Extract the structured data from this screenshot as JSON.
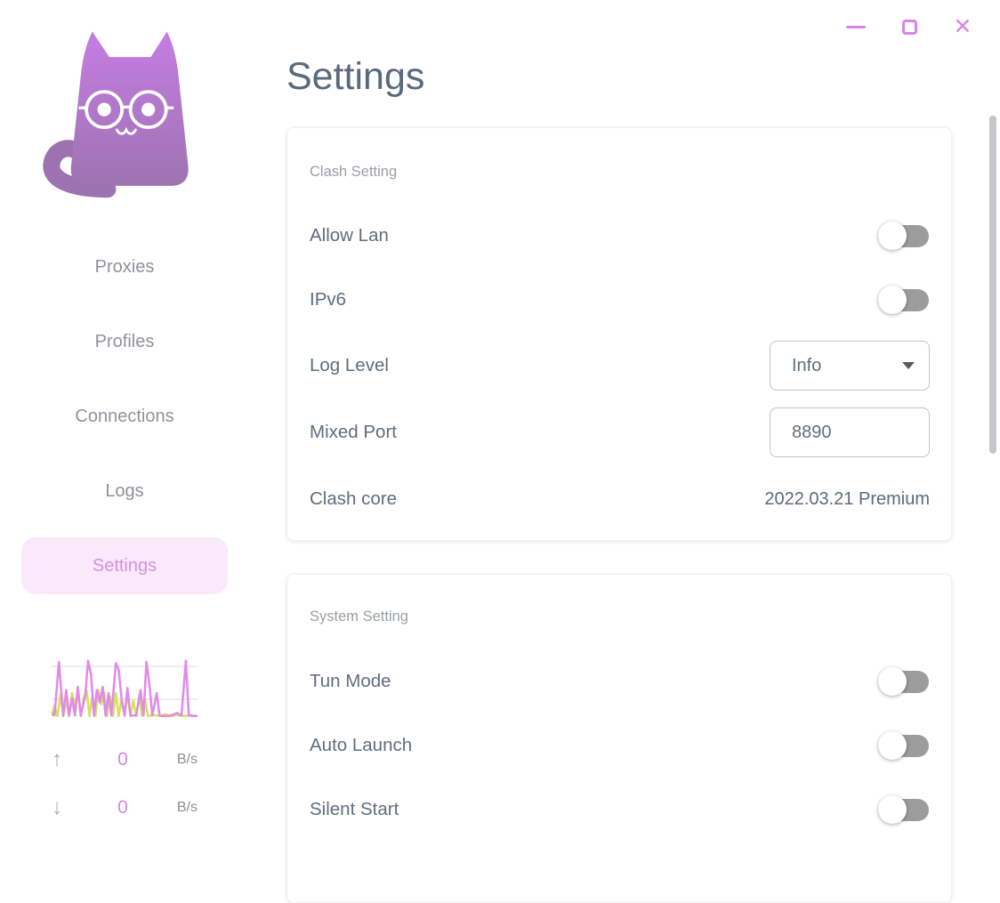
{
  "window": {
    "controls": [
      {
        "name": "minimize"
      },
      {
        "name": "maximize"
      },
      {
        "name": "close",
        "glyph": "✕"
      }
    ],
    "accent_color": "#d885e8"
  },
  "sidebar": {
    "logo": "clash-cat-logo",
    "nav": [
      {
        "label": "Proxies",
        "active": false
      },
      {
        "label": "Profiles",
        "active": false
      },
      {
        "label": "Connections",
        "active": false
      },
      {
        "label": "Logs",
        "active": false
      },
      {
        "label": "Settings",
        "active": true
      }
    ],
    "traffic": {
      "up": {
        "arrow": "↑",
        "value": "0",
        "unit": "B/s"
      },
      "down": {
        "arrow": "↓",
        "value": "0",
        "unit": "B/s"
      },
      "graph": {
        "up_color": "#e18ae9",
        "down_color": "#d5e05b",
        "grid_color": "#eaeaea",
        "grid_lines_pct": [
          17,
          70
        ],
        "up_points": [
          [
            0,
            92
          ],
          [
            2,
            96
          ],
          [
            5,
            10
          ],
          [
            8,
            96
          ],
          [
            10,
            55
          ],
          [
            12,
            96
          ],
          [
            14,
            68
          ],
          [
            16,
            96
          ],
          [
            18,
            50
          ],
          [
            20,
            96
          ],
          [
            23,
            65
          ],
          [
            25,
            8
          ],
          [
            27,
            30
          ],
          [
            29,
            96
          ],
          [
            31,
            55
          ],
          [
            33,
            75
          ],
          [
            35,
            50
          ],
          [
            37,
            96
          ],
          [
            39,
            60
          ],
          [
            41,
            96
          ],
          [
            44,
            12
          ],
          [
            46,
            22
          ],
          [
            48,
            70
          ],
          [
            50,
            96
          ],
          [
            52,
            52
          ],
          [
            54,
            96
          ],
          [
            58,
            96
          ],
          [
            61,
            55
          ],
          [
            63,
            96
          ],
          [
            65,
            10
          ],
          [
            67,
            45
          ],
          [
            69,
            96
          ],
          [
            72,
            60
          ],
          [
            74,
            96
          ],
          [
            76,
            97
          ],
          [
            80,
            97
          ],
          [
            83,
            95
          ],
          [
            86,
            92
          ],
          [
            89,
            96
          ],
          [
            92,
            8
          ],
          [
            94,
            96
          ],
          [
            100,
            97
          ]
        ],
        "down_points": [
          [
            0,
            97
          ],
          [
            2,
            80
          ],
          [
            4,
            97
          ],
          [
            6,
            62
          ],
          [
            8,
            97
          ],
          [
            10,
            72
          ],
          [
            12,
            97
          ],
          [
            14,
            60
          ],
          [
            16,
            80
          ],
          [
            18,
            58
          ],
          [
            20,
            97
          ],
          [
            22,
            68
          ],
          [
            24,
            56
          ],
          [
            26,
            97
          ],
          [
            28,
            62
          ],
          [
            30,
            97
          ],
          [
            32,
            55
          ],
          [
            34,
            78
          ],
          [
            36,
            58
          ],
          [
            38,
            97
          ],
          [
            40,
            65
          ],
          [
            42,
            97
          ],
          [
            44,
            60
          ],
          [
            46,
            97
          ],
          [
            48,
            70
          ],
          [
            50,
            97
          ],
          [
            52,
            62
          ],
          [
            54,
            97
          ],
          [
            56,
            72
          ],
          [
            58,
            97
          ],
          [
            60,
            65
          ],
          [
            62,
            97
          ],
          [
            64,
            70
          ],
          [
            66,
            97
          ],
          [
            70,
            95
          ],
          [
            74,
            97
          ],
          [
            78,
            94
          ],
          [
            82,
            97
          ],
          [
            86,
            95
          ],
          [
            90,
            97
          ],
          [
            95,
            96
          ],
          [
            100,
            97
          ]
        ]
      }
    }
  },
  "main": {
    "title": "Settings",
    "cards": [
      {
        "header": "Clash Setting",
        "rows": [
          {
            "label": "Allow Lan",
            "control": "toggle",
            "checked": false
          },
          {
            "label": "IPv6",
            "control": "toggle",
            "checked": false
          },
          {
            "label": "Log Level",
            "control": "select",
            "value": "Info"
          },
          {
            "label": "Mixed Port",
            "control": "input",
            "value": "8890"
          },
          {
            "label": "Clash core",
            "control": "text",
            "value": "2022.03.21 Premium"
          }
        ]
      },
      {
        "header": "System Setting",
        "rows": [
          {
            "label": "Tun Mode",
            "control": "toggle",
            "checked": false
          },
          {
            "label": "Auto Launch",
            "control": "toggle",
            "checked": false
          },
          {
            "label": "Silent Start",
            "control": "toggle",
            "checked": false
          }
        ]
      }
    ]
  }
}
